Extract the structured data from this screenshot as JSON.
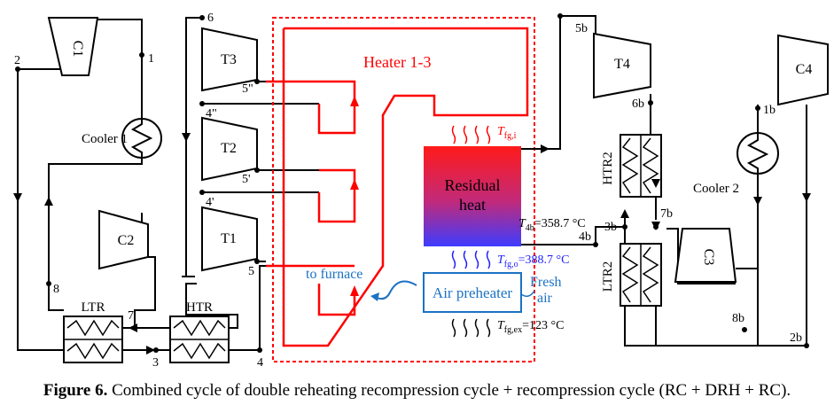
{
  "components": {
    "c1": "C1",
    "c2": "C2",
    "c3": "C3",
    "c4": "C4",
    "t1": "T1",
    "t2": "T2",
    "t3": "T3",
    "t4": "T4",
    "cooler1": "Cooler 1",
    "cooler2": "Cooler 2",
    "ltr": "LTR",
    "htr": "HTR",
    "ltr2": "LTR2",
    "htr2": "HTR2",
    "heater": "Heater 1-3",
    "residual_line1": "Residual",
    "residual_line2": "heat",
    "air_preheater": "Air preheater",
    "fresh_line1": "Fresh",
    "fresh_line2": "air",
    "to_furnace": "to furnace"
  },
  "states": {
    "s1": "1",
    "s2": "2",
    "s3": "3",
    "s4": "4",
    "s4p": "4'",
    "s4pp": "4\"",
    "s5": "5",
    "s5p": "5'",
    "s5pp": "5\"",
    "s6": "6",
    "s7": "7",
    "s8": "8",
    "s1b": "1b",
    "s2b": "2b",
    "s3b": "3b",
    "s4b": "4b",
    "s5b": "5b",
    "s6b": "6b",
    "s7b": "7b",
    "s8b": "8b"
  },
  "temperatures": {
    "tfgi_sym": "T",
    "tfgi_sub": "fg,i",
    "t4b_sym": "T",
    "t4b_sub": "4b",
    "t4b_val": "=358.7 °C",
    "tfgo_sym": "T",
    "tfgo_sub": "fg,o",
    "tfgo_val": "=388.7 °C",
    "tfgex_sym": "T",
    "tfgex_sub": "fg,ex",
    "tfgex_val": "=123 °C"
  },
  "caption": {
    "label": "Figure 6.",
    "text": " Combined cycle of double reheating recompression cycle + recompression cycle (RC + DRH + RC)."
  },
  "colors": {
    "line": "#000000",
    "heater": "#ff0000",
    "air_path": "#1c72c4",
    "residual_top": "#ff2020",
    "residual_bottom": "#4a3cff",
    "flue_out": "#2020ff"
  }
}
